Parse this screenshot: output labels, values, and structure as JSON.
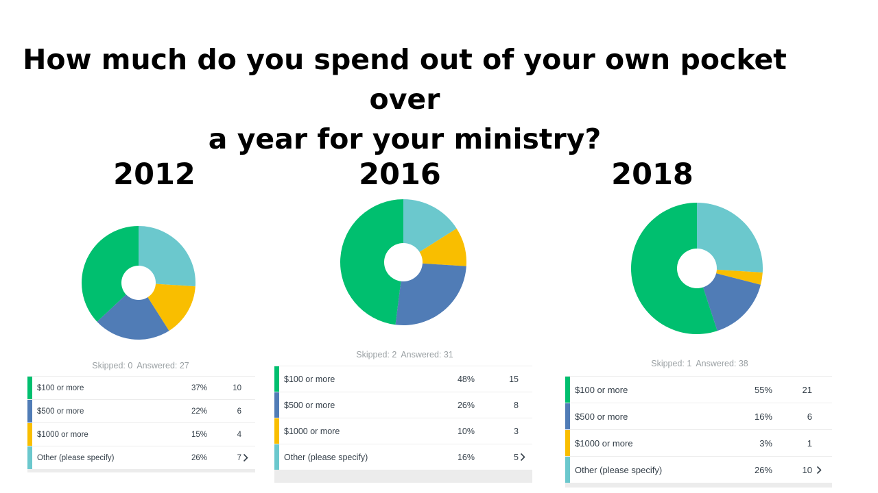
{
  "title": {
    "line1": "How much do you spend out of your own pocket over",
    "line2": "a year for your ministry?"
  },
  "labels": {
    "skipped": "Skipped:",
    "answered": "Answered:"
  },
  "colors": [
    "#00bf6f",
    "#507cb6",
    "#f9be00",
    "#6bc8cd"
  ],
  "chart_data": [
    {
      "type": "pie",
      "title": "2012",
      "categories": [
        "$100 or more",
        "$500 or more",
        "$1000 or more",
        "Other (please specify)"
      ],
      "values": [
        37,
        22,
        15,
        26
      ],
      "percent_labels": [
        "37%",
        "22%",
        "15%",
        "26%"
      ],
      "counts": [
        10,
        6,
        4,
        7
      ],
      "skipped": 0,
      "answered": 27
    },
    {
      "type": "pie",
      "title": "2016",
      "categories": [
        "$100 or more",
        "$500 or more",
        "$1000 or more",
        "Other (please specify)"
      ],
      "values": [
        48,
        26,
        10,
        16
      ],
      "percent_labels": [
        "48%",
        "26%",
        "10%",
        "16%"
      ],
      "counts": [
        15,
        8,
        3,
        5
      ],
      "skipped": 2,
      "answered": 31
    },
    {
      "type": "pie",
      "title": "2018",
      "categories": [
        "$100 or more",
        "$500 or more",
        "$1000 or more",
        "Other (please specify)"
      ],
      "values": [
        55,
        16,
        3,
        26
      ],
      "percent_labels": [
        "55%",
        "16%",
        "3%",
        "26%"
      ],
      "counts": [
        21,
        6,
        1,
        10
      ],
      "skipped": 1,
      "answered": 38
    }
  ]
}
